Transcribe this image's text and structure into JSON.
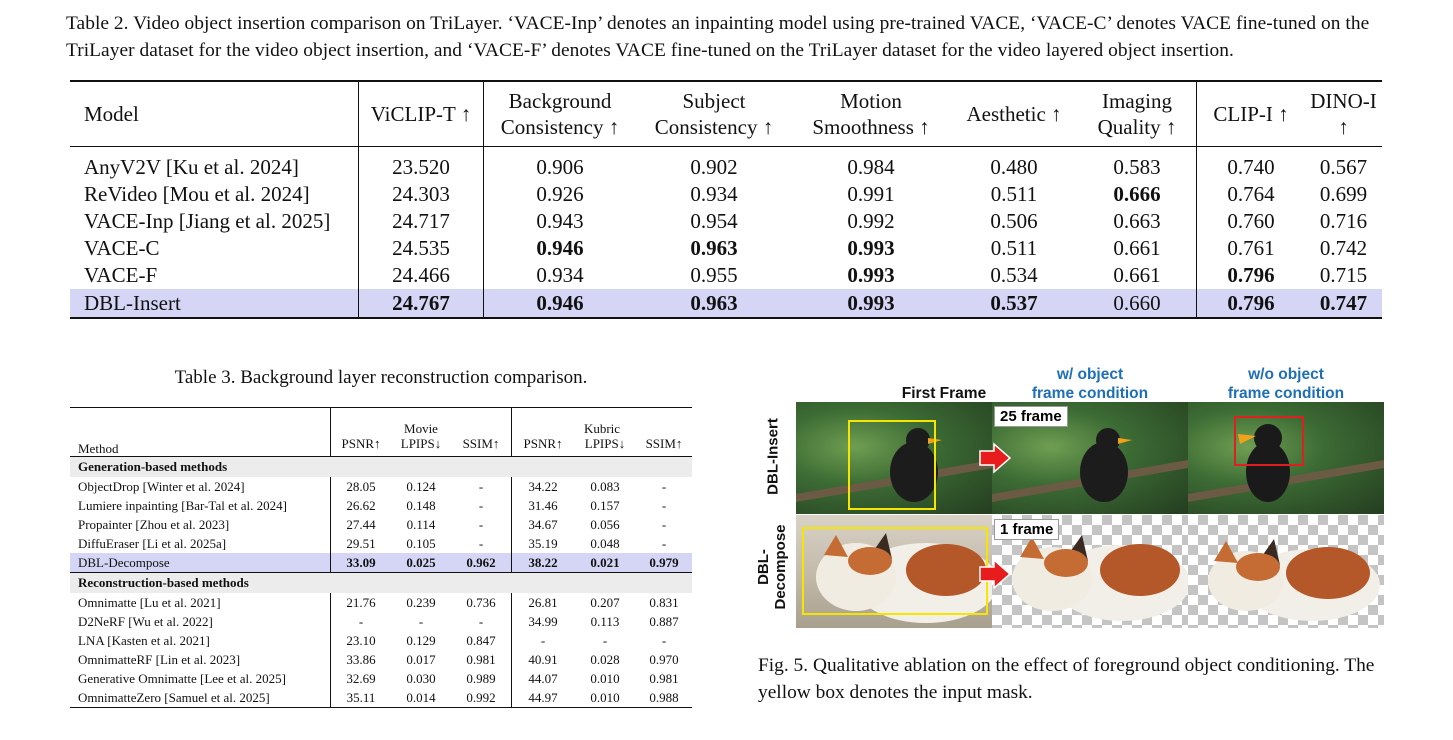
{
  "table2": {
    "caption": "Table 2.  Video object insertion comparison on TriLayer. ‘VACE-Inp’ denotes an inpainting model using pre-trained VACE, ‘VACE-C’ denotes VACE fine-tuned on the TriLayer dataset for the video object insertion, and ‘VACE-F’ denotes VACE fine-tuned on the TriLayer dataset for the video layered object insertion.",
    "headers": {
      "model": "Model",
      "viclip_t": "ViCLIP-T ↑",
      "bg_consistency_1": "Background",
      "bg_consistency_2": "Consistency ↑",
      "subj_consistency_1": "Subject",
      "subj_consistency_2": "Consistency ↑",
      "motion_1": "Motion",
      "motion_2": "Smoothness ↑",
      "aesthetic": "Aesthetic ↑",
      "imaging_1": "Imaging",
      "imaging_2": "Quality ↑",
      "clip_i": "CLIP-I ↑",
      "dino_i": "DINO-I ↑"
    },
    "rows": [
      {
        "model": "AnyV2V [Ku et al. 2024]",
        "viclip_t": "23.520",
        "bg": "0.906",
        "subj": "0.902",
        "motion": "0.984",
        "aesthetic": "0.480",
        "imaging": "0.583",
        "clip_i": "0.740",
        "dino_i": "0.567"
      },
      {
        "model": "ReVideo [Mou et al. 2024]",
        "viclip_t": "24.303",
        "bg": "0.926",
        "subj": "0.934",
        "motion": "0.991",
        "aesthetic": "0.511",
        "imaging": "0.666",
        "clip_i": "0.764",
        "dino_i": "0.699"
      },
      {
        "model": "VACE-Inp [Jiang et al. 2025]",
        "viclip_t": "24.717",
        "bg": "0.943",
        "subj": "0.954",
        "motion": "0.992",
        "aesthetic": "0.506",
        "imaging": "0.663",
        "clip_i": "0.760",
        "dino_i": "0.716"
      },
      {
        "model": "VACE-C",
        "viclip_t": "24.535",
        "bg": "0.946",
        "subj": "0.963",
        "motion": "0.993",
        "aesthetic": "0.511",
        "imaging": "0.661",
        "clip_i": "0.761",
        "dino_i": "0.742"
      },
      {
        "model": "VACE-F",
        "viclip_t": "24.466",
        "bg": "0.934",
        "subj": "0.955",
        "motion": "0.993",
        "aesthetic": "0.534",
        "imaging": "0.661",
        "clip_i": "0.796",
        "dino_i": "0.715"
      },
      {
        "model": "DBL-Insert",
        "viclip_t": "24.767",
        "bg": "0.946",
        "subj": "0.963",
        "motion": "0.993",
        "aesthetic": "0.537",
        "imaging": "0.660",
        "clip_i": "0.796",
        "dino_i": "0.747"
      }
    ]
  },
  "table3": {
    "caption": "Table 3.  Background layer reconstruction comparison.",
    "headers": {
      "method": "Method",
      "movie": "Movie",
      "kubric": "Kubric",
      "psnr": "PSNR↑",
      "lpips": "LPIPS↓",
      "ssim": "SSIM↑"
    },
    "section_generation": "Generation-based methods",
    "generation_rows": [
      {
        "method": "ObjectDrop [Winter et al. 2024]",
        "m_psnr": "28.05",
        "m_lpips": "0.124",
        "m_ssim": "-",
        "k_psnr": "34.22",
        "k_lpips": "0.083",
        "k_ssim": "-"
      },
      {
        "method": "Lumiere inpainting [Bar-Tal et al. 2024]",
        "m_psnr": "26.62",
        "m_lpips": "0.148",
        "m_ssim": "-",
        "k_psnr": "31.46",
        "k_lpips": "0.157",
        "k_ssim": "-"
      },
      {
        "method": "Propainter [Zhou et al. 2023]",
        "m_psnr": "27.44",
        "m_lpips": "0.114",
        "m_ssim": "-",
        "k_psnr": "34.67",
        "k_lpips": "0.056",
        "k_ssim": "-"
      },
      {
        "method": "DiffuEraser [Li et al. 2025a]",
        "m_psnr": "29.51",
        "m_lpips": "0.105",
        "m_ssim": "-",
        "k_psnr": "35.19",
        "k_lpips": "0.048",
        "k_ssim": "-"
      },
      {
        "method": "DBL-Decompose",
        "m_psnr": "33.09",
        "m_lpips": "0.025",
        "m_ssim": "0.962",
        "k_psnr": "38.22",
        "k_lpips": "0.021",
        "k_ssim": "0.979"
      }
    ],
    "section_reconstruction": "Reconstruction-based methods",
    "reconstruction_rows": [
      {
        "method": "Omnimatte [Lu et al. 2021]",
        "m_psnr": "21.76",
        "m_lpips": "0.239",
        "m_ssim": "0.736",
        "k_psnr": "26.81",
        "k_lpips": "0.207",
        "k_ssim": "0.831"
      },
      {
        "method": "D2NeRF [Wu et al. 2022]",
        "m_psnr": "-",
        "m_lpips": "-",
        "m_ssim": "-",
        "k_psnr": "34.99",
        "k_lpips": "0.113",
        "k_ssim": "0.887"
      },
      {
        "method": "LNA [Kasten et al. 2021]",
        "m_psnr": "23.10",
        "m_lpips": "0.129",
        "m_ssim": "0.847",
        "k_psnr": "-",
        "k_lpips": "-",
        "k_ssim": "-"
      },
      {
        "method": "OmnimatteRF [Lin et al. 2023]",
        "m_psnr": "33.86",
        "m_lpips": "0.017",
        "m_ssim": "0.981",
        "k_psnr": "40.91",
        "k_lpips": "0.028",
        "k_ssim": "0.970"
      },
      {
        "method": "Generative Omnimatte [Lee et al. 2025]",
        "m_psnr": "32.69",
        "m_lpips": "0.030",
        "m_ssim": "0.989",
        "k_psnr": "44.07",
        "k_lpips": "0.010",
        "k_ssim": "0.981"
      },
      {
        "method": "OmnimatteZero [Samuel et al. 2025]",
        "m_psnr": "35.11",
        "m_lpips": "0.014",
        "m_ssim": "0.992",
        "k_psnr": "44.97",
        "k_lpips": "0.010",
        "k_ssim": "0.988"
      }
    ]
  },
  "figure5": {
    "col_first": "First Frame",
    "col_with_1": "w/ object",
    "col_with_2": "frame condition",
    "col_without_1": "w/o object",
    "col_without_2": "frame condition",
    "row_insert": "DBL-Insert",
    "row_decompose_1": "DBL-",
    "row_decompose_2": "Decompose",
    "badge_25": "25 frame",
    "badge_1": "1 frame",
    "caption": "Fig. 5.  Qualitative ablation on the effect of foreground object conditioning. The yellow box denotes the input mask.",
    "colors": {
      "label_blue": "#1e6fb8",
      "mask_yellow": "#f5e500",
      "box_red": "#e02020",
      "arrow_red": "#e81c1c"
    }
  }
}
